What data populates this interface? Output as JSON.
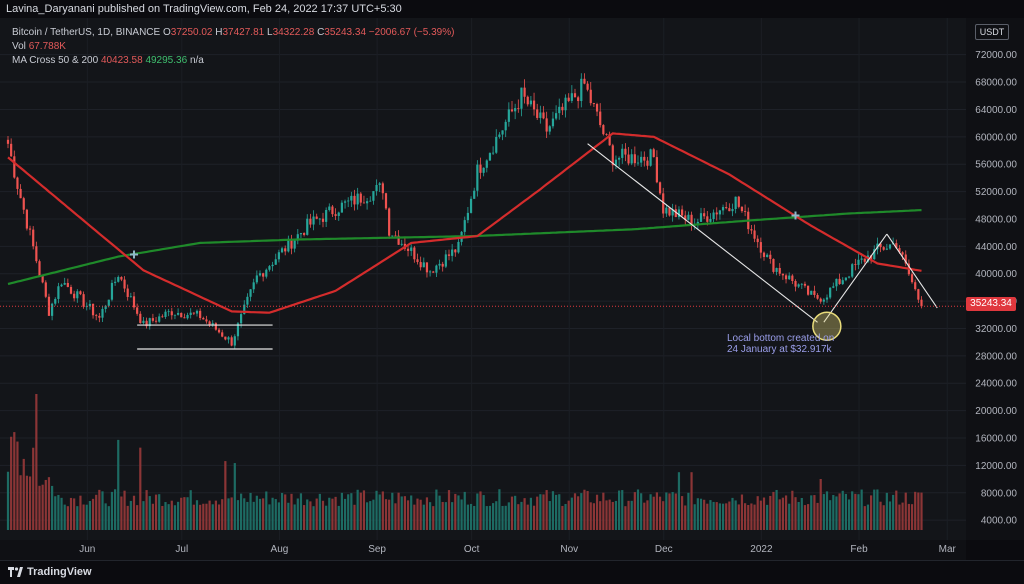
{
  "header": {
    "publisher": "Lavina_Daryanani published on TradingView.com, Feb 24, 2022 17:37 UTC+5:30"
  },
  "legend": {
    "symbol": "Bitcoin / TetherUS, 1D, BINANCE",
    "open_label": "O",
    "open": "37250.02",
    "high_label": "H",
    "high": "37427.81",
    "low_label": "L",
    "low": "34322.28",
    "close_label": "C",
    "close": "35243.34",
    "change": "−2006.67 (−5.39%)",
    "vol_label": "Vol",
    "vol": "67.788K",
    "ma_label": "MA Cross 50 & 200",
    "ma50": "40423.58",
    "ma200": "49295.36",
    "ma_na": "n/a"
  },
  "axis": {
    "currency": "USDT",
    "last_price": "35243.34"
  },
  "annotation": {
    "line1": "Local bottom created on",
    "line2": "24 January at $32.917k"
  },
  "footer": {
    "brand": "TradingView"
  },
  "colors": {
    "up": "#26a69a",
    "down": "#ef5350",
    "ma50": "#d42c2c",
    "ma200": "#1f8a2a",
    "last_price": "#e0383e",
    "annotation": "#9a9eea"
  },
  "chart_data": {
    "type": "candlestick",
    "x_start": "2021-05-10",
    "x_end": "2022-02-24",
    "xtick_labels": [
      "Jun",
      "Jul",
      "Aug",
      "Sep",
      "Oct",
      "Nov",
      "Dec",
      "2022",
      "Feb",
      "Mar"
    ],
    "price_ylim": [
      0,
      76000
    ],
    "price_ticks": [
      "72000.00",
      "68000.00",
      "64000.00",
      "60000.00",
      "56000.00",
      "52000.00",
      "48000.00",
      "44000.00",
      "40000.00",
      "36000.00",
      "32000.00",
      "28000.00",
      "24000.00",
      "20000.00",
      "16000.00",
      "12000.00",
      "8000.00",
      "4000.00"
    ],
    "close_anchors": [
      {
        "date": "2021-05-10",
        "close": 59000
      },
      {
        "date": "2021-05-13",
        "close": 53000
      },
      {
        "date": "2021-05-19",
        "close": 42000
      },
      {
        "date": "2021-05-23",
        "close": 34500
      },
      {
        "date": "2021-05-27",
        "close": 39000
      },
      {
        "date": "2021-06-08",
        "close": 33500
      },
      {
        "date": "2021-06-14",
        "close": 40000
      },
      {
        "date": "2021-06-22",
        "close": 32500
      },
      {
        "date": "2021-07-01",
        "close": 34500
      },
      {
        "date": "2021-07-10",
        "close": 33800
      },
      {
        "date": "2021-07-20",
        "close": 30000
      },
      {
        "date": "2021-07-28",
        "close": 39500
      },
      {
        "date": "2021-08-13",
        "close": 47000
      },
      {
        "date": "2021-08-22",
        "close": 49500
      },
      {
        "date": "2021-09-06",
        "close": 52600
      },
      {
        "date": "2021-09-08",
        "close": 46500
      },
      {
        "date": "2021-09-21",
        "close": 40500
      },
      {
        "date": "2021-09-30",
        "close": 43800
      },
      {
        "date": "2021-10-06",
        "close": 55000
      },
      {
        "date": "2021-10-20",
        "close": 66000
      },
      {
        "date": "2021-10-28",
        "close": 61000
      },
      {
        "date": "2021-11-09",
        "close": 67600
      },
      {
        "date": "2021-11-18",
        "close": 57000
      },
      {
        "date": "2021-12-01",
        "close": 57000
      },
      {
        "date": "2021-12-04",
        "close": 49500
      },
      {
        "date": "2021-12-14",
        "close": 47500
      },
      {
        "date": "2021-12-27",
        "close": 50700
      },
      {
        "date": "2022-01-07",
        "close": 41500
      },
      {
        "date": "2022-01-21",
        "close": 36400
      },
      {
        "date": "2022-01-24",
        "close": 36700
      },
      {
        "date": "2022-02-04",
        "close": 41500
      },
      {
        "date": "2022-02-10",
        "close": 43500
      },
      {
        "date": "2022-02-16",
        "close": 44500
      },
      {
        "date": "2022-02-24",
        "close": 35243
      }
    ],
    "ma50_anchors": [
      {
        "date": "2021-05-10",
        "value": 57000
      },
      {
        "date": "2021-06-05",
        "value": 47000
      },
      {
        "date": "2021-06-22",
        "value": 40500
      },
      {
        "date": "2021-07-20",
        "value": 34500
      },
      {
        "date": "2021-08-01",
        "value": 34300
      },
      {
        "date": "2021-08-22",
        "value": 37500
      },
      {
        "date": "2021-09-15",
        "value": 44500
      },
      {
        "date": "2021-10-06",
        "value": 45500
      },
      {
        "date": "2021-10-25",
        "value": 52000
      },
      {
        "date": "2021-11-18",
        "value": 60500
      },
      {
        "date": "2021-12-01",
        "value": 60000
      },
      {
        "date": "2021-12-25",
        "value": 54500
      },
      {
        "date": "2022-01-20",
        "value": 47000
      },
      {
        "date": "2022-02-10",
        "value": 41500
      },
      {
        "date": "2022-02-24",
        "value": 40424
      }
    ],
    "ma200_anchors": [
      {
        "date": "2021-05-10",
        "value": 38500
      },
      {
        "date": "2021-06-14",
        "value": 42500
      },
      {
        "date": "2021-07-10",
        "value": 44500
      },
      {
        "date": "2021-08-10",
        "value": 45000
      },
      {
        "date": "2021-10-05",
        "value": 45500
      },
      {
        "date": "2021-11-25",
        "value": 46500
      },
      {
        "date": "2022-01-01",
        "value": 47800
      },
      {
        "date": "2022-02-01",
        "value": 48800
      },
      {
        "date": "2022-02-24",
        "value": 49295
      }
    ],
    "ma_cross_marks": [
      {
        "date": "2021-06-19",
        "value": 42800
      },
      {
        "date": "2022-01-15",
        "value": 48500
      }
    ],
    "support_lines": [
      {
        "from": "2021-06-20",
        "to": "2021-08-02",
        "value": 32500
      },
      {
        "from": "2021-06-20",
        "to": "2021-08-02",
        "value": 29000
      }
    ],
    "trend_lines": [
      {
        "from_date": "2021-11-10",
        "from_value": 59000,
        "to_date": "2022-01-22",
        "to_value": 32900
      },
      {
        "from_date": "2022-01-24",
        "from_value": 32917,
        "to_date": "2022-02-13",
        "to_value": 45800
      },
      {
        "from_date": "2022-02-13",
        "from_value": 45800,
        "to_date": "2022-03-01",
        "to_value": 35000
      }
    ],
    "local_bottom": {
      "date": "2022-01-24",
      "value": 32917
    }
  }
}
